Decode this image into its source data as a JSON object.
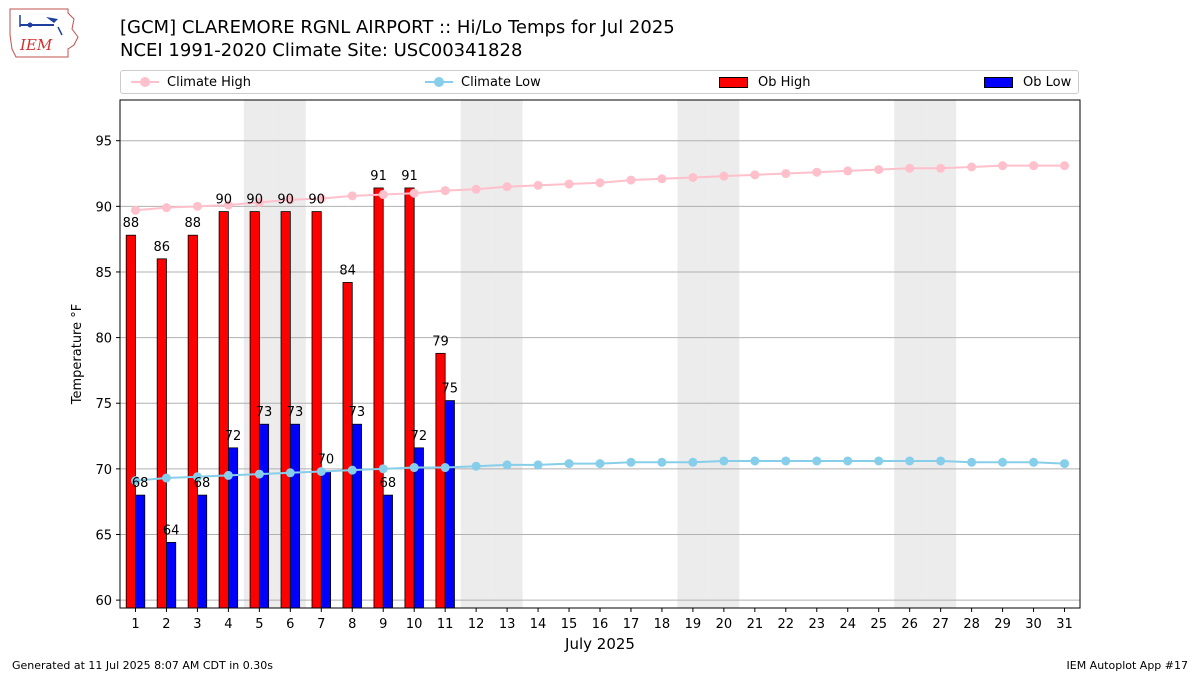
{
  "header": {
    "title_line1": "[GCM] CLAREMORE RGNL AIRPORT :: Hi/Lo Temps for Jul 2025",
    "title_line2": "NCEI 1991-2020 Climate Site: USC00341828",
    "logo_text": "IEM"
  },
  "footer": {
    "generated": "Generated at 11 Jul 2025 8:07 AM CDT in 0.30s",
    "app": "IEM Autoplot App #17"
  },
  "legend": {
    "climate_high": "Climate High",
    "climate_low": "Climate Low",
    "ob_high": "Ob High",
    "ob_low": "Ob Low"
  },
  "colors": {
    "climate_high": "#ffc0cb",
    "climate_low": "#87ceeb",
    "ob_high": "#ff0000",
    "ob_low": "#0000ff",
    "weekend_shade": "#ececec",
    "grid": "#b0b0b0"
  },
  "chart_data": {
    "type": "bar",
    "xlabel": "July 2025",
    "ylabel": "Temperature °F",
    "ylim": [
      59.4,
      98.1
    ],
    "yticks": [
      60,
      65,
      70,
      75,
      80,
      85,
      90,
      95
    ],
    "grid": "horizontal",
    "legend_position": "top",
    "categories": [
      "1",
      "2",
      "3",
      "4",
      "5",
      "6",
      "7",
      "8",
      "9",
      "10",
      "11",
      "12",
      "13",
      "14",
      "15",
      "16",
      "17",
      "18",
      "19",
      "20",
      "21",
      "22",
      "23",
      "24",
      "25",
      "26",
      "27",
      "28",
      "29",
      "30",
      "31"
    ],
    "weekend_days": [
      5,
      6,
      12,
      13,
      19,
      20,
      26,
      27
    ],
    "ob_high": [
      88,
      86,
      88,
      90,
      90,
      90,
      90,
      84,
      91,
      91,
      79
    ],
    "ob_low": [
      68,
      64,
      68,
      72,
      73,
      73,
      70,
      73,
      68,
      72,
      75
    ],
    "ob_high_plotted": [
      87.8,
      86.0,
      87.8,
      89.6,
      89.6,
      89.6,
      89.6,
      84.2,
      91.4,
      91.4,
      78.8
    ],
    "ob_low_plotted": [
      68.0,
      64.4,
      68.0,
      71.6,
      73.4,
      73.4,
      69.8,
      73.4,
      68.0,
      71.6,
      75.2
    ],
    "climate_high": [
      89.7,
      89.9,
      90.0,
      90.1,
      90.3,
      90.5,
      90.6,
      90.8,
      90.9,
      91.0,
      91.2,
      91.3,
      91.5,
      91.6,
      91.7,
      91.8,
      92.0,
      92.1,
      92.2,
      92.3,
      92.4,
      92.5,
      92.6,
      92.7,
      92.8,
      92.9,
      92.9,
      93.0,
      93.1,
      93.1,
      93.1
    ],
    "climate_low": [
      69.1,
      69.3,
      69.4,
      69.5,
      69.6,
      69.7,
      69.8,
      69.9,
      70.0,
      70.1,
      70.1,
      70.2,
      70.3,
      70.3,
      70.4,
      70.4,
      70.5,
      70.5,
      70.5,
      70.6,
      70.6,
      70.6,
      70.6,
      70.6,
      70.6,
      70.6,
      70.6,
      70.5,
      70.5,
      70.5,
      70.4
    ]
  }
}
